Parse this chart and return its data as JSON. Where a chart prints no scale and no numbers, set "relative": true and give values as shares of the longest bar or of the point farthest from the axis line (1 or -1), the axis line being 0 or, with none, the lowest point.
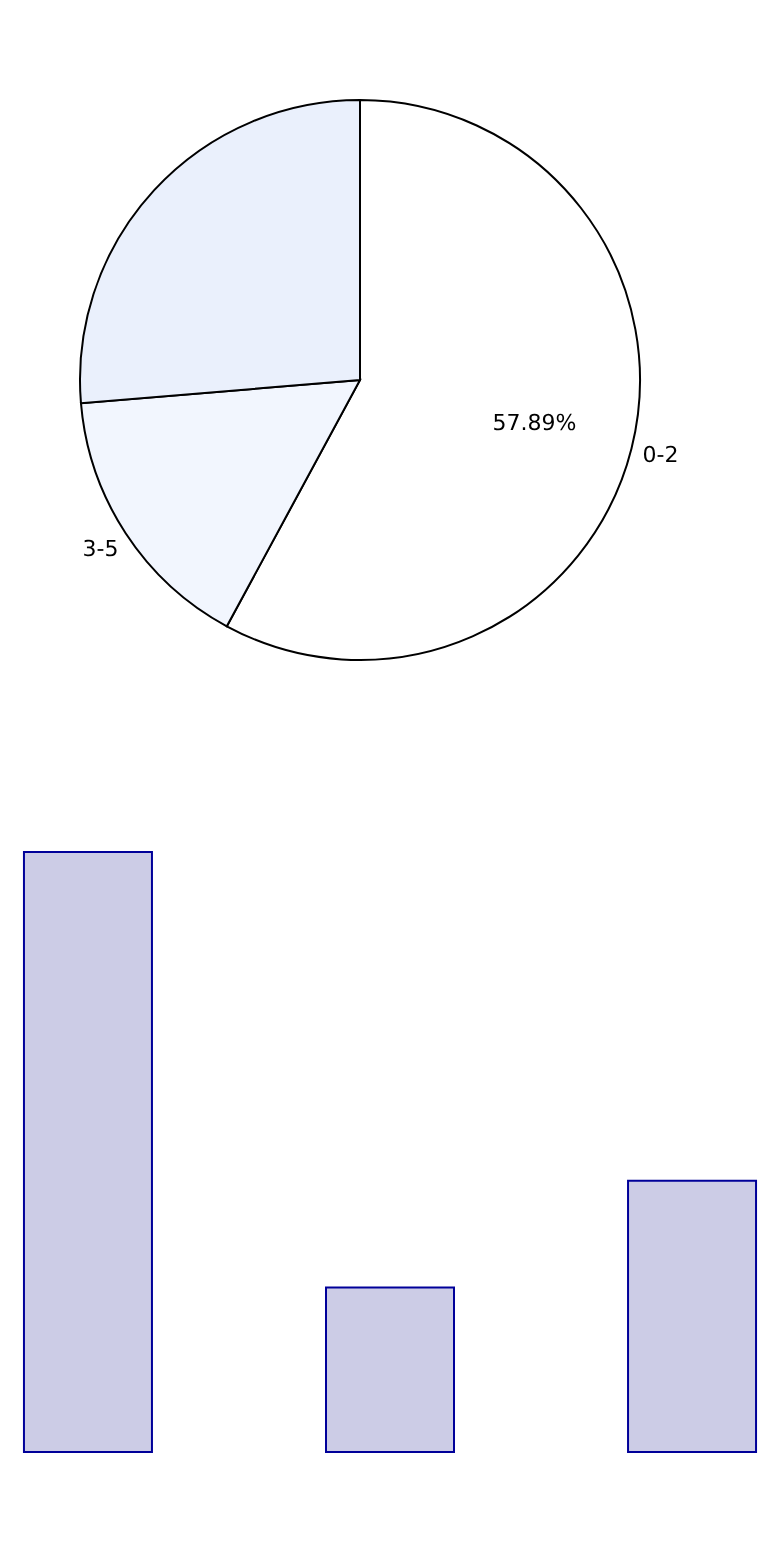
{
  "chart_data": [
    {
      "type": "pie",
      "categories": [
        "0-2",
        "3-5",
        null
      ],
      "values": [
        57.89,
        15.79,
        26.32
      ],
      "colors": [
        "#ffffff",
        "#f2f6fe",
        "#eaf0fc"
      ],
      "value_labels": [
        "57.89%",
        null,
        null
      ]
    },
    {
      "type": "bar",
      "relative": true,
      "categories": [
        null,
        null,
        null
      ],
      "values": [
        1,
        0.274,
        0.452
      ],
      "color": "#ccccE6"
    }
  ]
}
